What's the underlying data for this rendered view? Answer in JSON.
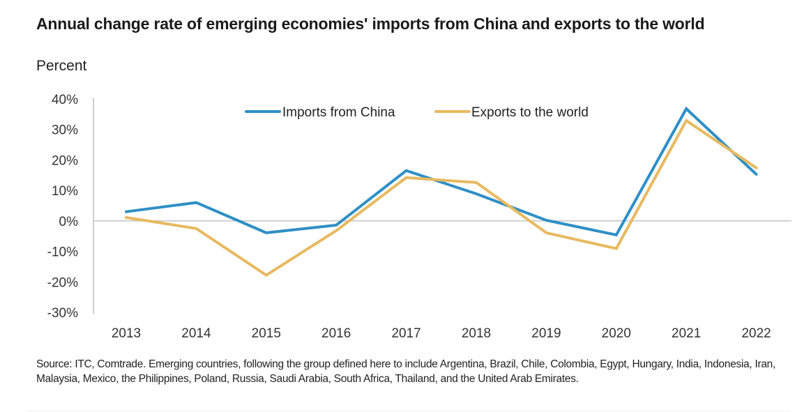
{
  "header": {
    "title": "Annual change rate of emerging economies' imports from China and exports to the world",
    "subtitle": "Percent"
  },
  "footer": {
    "source": "Source: ITC, Comtrade. Emerging countries, following the group defined here to include Argentina, Brazil, Chile, Colombia, Egypt, Hungary, India, Indonesia, Iran, Malaysia, Mexico, the Philippines, Poland, Russia, Saudi Arabia, South Africa, Thailand, and the United Arab Emirates."
  },
  "chart_data": {
    "type": "line",
    "title": "Annual change rate of emerging economies' imports from China and exports to the world",
    "subtitle": "Percent",
    "xlabel": "",
    "ylabel": "Percent",
    "categories": [
      "2013",
      "2014",
      "2015",
      "2016",
      "2017",
      "2018",
      "2019",
      "2020",
      "2021",
      "2022"
    ],
    "ylim": [
      -30,
      40
    ],
    "yticks": [
      40,
      30,
      20,
      10,
      0,
      -10,
      -20,
      -30
    ],
    "ytick_labels": [
      "40%",
      "30%",
      "20%",
      "10%",
      "0%",
      "-10%",
      "-20%",
      "-30%"
    ],
    "grid": false,
    "zero_line": true,
    "legend_position": "top-center",
    "series": [
      {
        "name": "Imports from China",
        "color": "#2e8fc6",
        "values": [
          3.0,
          6.0,
          -3.9,
          -1.4,
          16.5,
          8.9,
          0.2,
          -4.6,
          36.8,
          15.3
        ]
      },
      {
        "name": "Exports to the world",
        "color": "#e8b960",
        "values": [
          1.1,
          -2.5,
          -17.8,
          -3.2,
          14.2,
          12.6,
          -3.9,
          -9.1,
          32.9,
          17.4
        ]
      }
    ],
    "source": "Source: ITC, Comtrade."
  }
}
